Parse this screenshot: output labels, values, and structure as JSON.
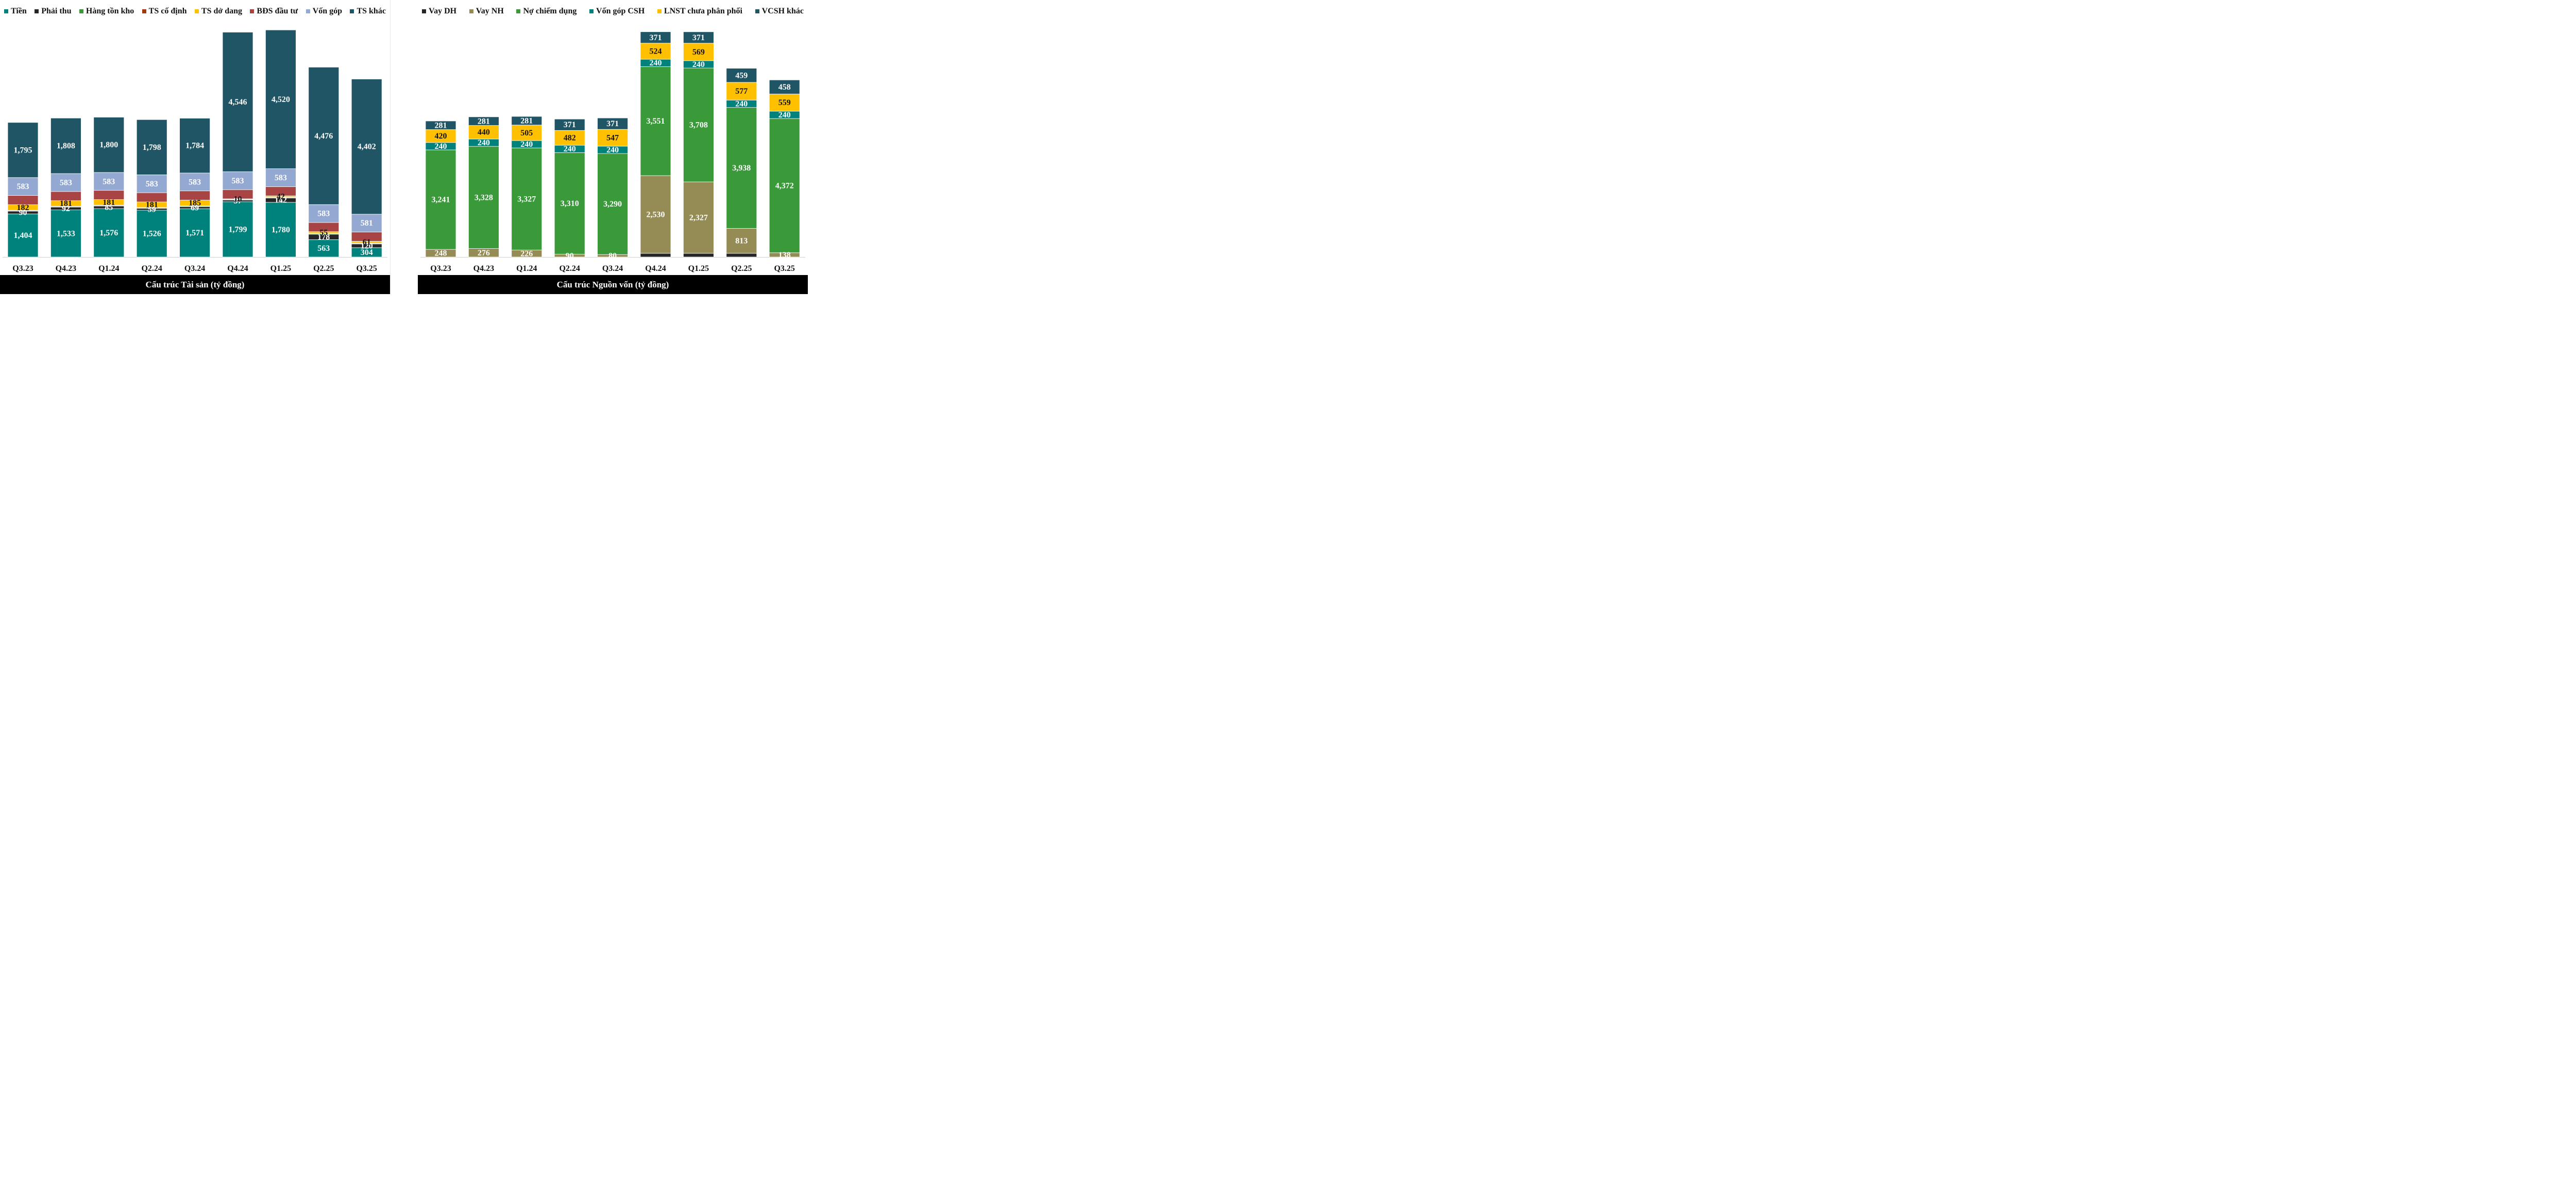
{
  "chart_data": [
    {
      "type": "bar",
      "stacked": true,
      "title": "Cấu trúc Tài sản (tỷ đồng)",
      "categories": [
        "Q3.23",
        "Q4.23",
        "Q1.24",
        "Q2.24",
        "Q3.24",
        "Q4.24",
        "Q1.25",
        "Q2.25",
        "Q3.25"
      ],
      "legend_position": "top",
      "grid": false,
      "ylim": [
        0,
        7700
      ],
      "series": [
        {
          "name": "Tiền",
          "color": "#00827c",
          "values": [
            1404,
            1533,
            1576,
            1526,
            1571,
            1799,
            1780,
            563,
            304
          ]
        },
        {
          "name": "Phải thu",
          "color": "#262626",
          "values": [
            90,
            92,
            85,
            59,
            69,
            57,
            142,
            178,
            120
          ]
        },
        {
          "name": "Hàng tồn kho",
          "color": "#3a9a3a",
          "values": [
            20,
            20,
            20,
            20,
            20,
            20,
            20,
            20,
            20
          ]
        },
        {
          "name": "TS cố định",
          "color": "#9c3b0b",
          "values": [
            8,
            8,
            8,
            8,
            8,
            8,
            8,
            8,
            8
          ]
        },
        {
          "name": "TS dở dang",
          "color": "#ffc000",
          "values": [
            182,
            181,
            181,
            181,
            185,
            10,
            42,
            55,
            61
          ]
        },
        {
          "name": "BĐS đầu tư",
          "color": "#a84444",
          "values": [
            300,
            300,
            300,
            300,
            300,
            300,
            300,
            300,
            300
          ]
        },
        {
          "name": "Vốn góp",
          "color": "#94a9d2",
          "values": [
            583,
            583,
            583,
            583,
            583,
            583,
            583,
            583,
            581
          ]
        },
        {
          "name": "TS khác",
          "color": "#1f5564",
          "values": [
            1795,
            1808,
            1800,
            1798,
            1784,
            4546,
            4520,
            4476,
            4402
          ]
        }
      ],
      "labels_shown": {
        "Tiền": [
          1404,
          1533,
          1576,
          1526,
          1571,
          1799,
          1780,
          563,
          304
        ],
        "Phải thu": [
          90,
          92,
          85,
          59,
          69,
          57,
          142,
          178,
          120
        ],
        "TS dở dang": [
          182,
          181,
          181,
          181,
          185,
          10,
          42,
          55,
          61
        ],
        "Vốn góp": [
          583,
          583,
          583,
          583,
          583,
          583,
          583,
          583,
          581
        ],
        "TS khác": [
          1795,
          1808,
          1800,
          1798,
          1784,
          4546,
          4520,
          4476,
          4402
        ]
      }
    },
    {
      "type": "bar",
      "stacked": true,
      "title": "Cấu trúc Nguồn vốn (tỷ đồng)",
      "categories": [
        "Q3.23",
        "Q4.23",
        "Q1.24",
        "Q2.24",
        "Q3.24",
        "Q4.24",
        "Q1.25",
        "Q2.25",
        "Q3.25"
      ],
      "legend_position": "top",
      "grid": false,
      "ylim": [
        0,
        7700
      ],
      "series": [
        {
          "name": "Vay DH",
          "color": "#262626",
          "values": [
            0,
            0,
            0,
            0,
            0,
            120,
            120,
            120,
            0
          ]
        },
        {
          "name": "Vay NH",
          "color": "#958b55",
          "values": [
            248,
            276,
            226,
            90,
            80,
            2530,
            2327,
            813,
            138
          ]
        },
        {
          "name": "Nợ chiếm dụng",
          "color": "#3a9a3a",
          "values": [
            3241,
            3328,
            3327,
            3310,
            3290,
            3551,
            3708,
            3938,
            4372
          ]
        },
        {
          "name": "Vốn góp CSH",
          "color": "#00827c",
          "values": [
            240,
            240,
            240,
            240,
            240,
            240,
            240,
            240,
            240
          ]
        },
        {
          "name": "LNST chưa phân phối",
          "color": "#ffc000",
          "values": [
            420,
            440,
            505,
            482,
            547,
            524,
            569,
            577,
            559
          ]
        },
        {
          "name": "VCSH khác",
          "color": "#1f5564",
          "values": [
            281,
            281,
            281,
            371,
            371,
            371,
            371,
            459,
            458
          ]
        }
      ],
      "labels_shown": {
        "Vay NH": [
          248,
          276,
          226,
          90,
          80,
          2530,
          2327,
          813,
          138
        ],
        "Nợ chiếm dụng": [
          3241,
          3328,
          3327,
          3310,
          3290,
          3551,
          3708,
          3938,
          4372
        ],
        "Vốn góp CSH": [
          240,
          240,
          240,
          240,
          240,
          240,
          240,
          240,
          240
        ],
        "LNST chưa phân phối": [
          420,
          440,
          505,
          482,
          547,
          524,
          569,
          577,
          559
        ],
        "VCSH khác": [
          281,
          281,
          281,
          371,
          371,
          371,
          371,
          459,
          458
        ]
      }
    }
  ]
}
